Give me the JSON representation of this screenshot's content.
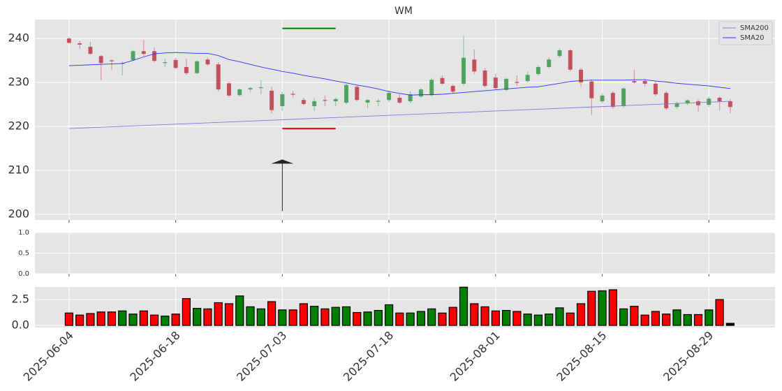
{
  "chart_data": [
    {
      "type": "candlestick",
      "title": "WM",
      "categories": [
        "2025-06-04",
        null,
        null,
        null,
        null,
        null,
        null,
        null,
        null,
        null,
        "2025-06-18",
        null,
        null,
        null,
        null,
        null,
        null,
        null,
        null,
        null,
        "2025-07-03",
        null,
        null,
        null,
        null,
        null,
        null,
        null,
        null,
        null,
        "2025-07-18",
        null,
        null,
        null,
        null,
        null,
        null,
        null,
        null,
        null,
        "2025-08-01",
        null,
        null,
        null,
        null,
        null,
        null,
        null,
        null,
        null,
        "2025-08-15",
        null,
        null,
        null,
        null,
        null,
        null,
        null,
        null,
        null,
        "2025-08-29",
        null,
        null
      ],
      "open": [
        240.0,
        238.9,
        238.1,
        236.0,
        235.0,
        234.2,
        235.1,
        237.1,
        237.1,
        234.4,
        235.1,
        233.5,
        232.1,
        235.2,
        234.1,
        229.8,
        227.1,
        228.4,
        228.7,
        228.1,
        224.6,
        227.4,
        226.0,
        224.6,
        226.0,
        225.7,
        225.4,
        229.0,
        225.4,
        225.6,
        226.0,
        226.5,
        225.7,
        226.8,
        227.1,
        231.0,
        229.2,
        229.7,
        235.2,
        232.7,
        231.1,
        228.3,
        230.1,
        230.3,
        231.9,
        233.5,
        236.0,
        237.3,
        232.9,
        230.2,
        225.7,
        227.6,
        224.6,
        230.3,
        230.3,
        229.7,
        227.6,
        224.4,
        225.2,
        225.7,
        224.9,
        226.5,
        225.7
      ],
      "high": [
        240.3,
        239.5,
        239.2,
        236.2,
        235.3,
        234.8,
        237.4,
        239.7,
        238.0,
        235.4,
        235.6,
        235.4,
        235.0,
        235.6,
        234.6,
        230.2,
        228.6,
        229.0,
        230.5,
        229.0,
        227.8,
        228.0,
        226.5,
        226.4,
        227.0,
        226.5,
        229.7,
        229.4,
        226.2,
        226.3,
        228.2,
        227.4,
        228.0,
        228.7,
        231.0,
        231.6,
        229.6,
        240.5,
        237.5,
        233.3,
        232.0,
        231.1,
        231.6,
        232.5,
        233.9,
        235.7,
        237.7,
        237.6,
        233.3,
        230.7,
        227.6,
        228.0,
        228.9,
        232.9,
        230.8,
        230.3,
        228.0,
        225.6,
        226.2,
        226.1,
        226.8,
        226.8,
        226.2
      ],
      "low": [
        238.8,
        237.6,
        236.3,
        230.5,
        232.9,
        231.6,
        234.9,
        236.0,
        234.6,
        233.5,
        233.0,
        231.7,
        231.9,
        233.8,
        228.0,
        226.6,
        226.8,
        227.8,
        227.3,
        222.9,
        223.5,
        226.6,
        224.8,
        223.5,
        224.6,
        224.6,
        225.0,
        225.7,
        224.1,
        224.5,
        225.5,
        225.1,
        225.3,
        226.5,
        226.8,
        229.4,
        227.4,
        229.3,
        231.9,
        228.8,
        228.3,
        228.0,
        229.2,
        230.0,
        231.5,
        233.2,
        235.6,
        232.5,
        228.9,
        222.6,
        225.2,
        224.0,
        224.2,
        229.7,
        229.0,
        226.9,
        223.7,
        224.0,
        224.8,
        223.4,
        224.4,
        223.6,
        223.0
      ],
      "close": [
        239.0,
        238.6,
        236.5,
        234.4,
        234.8,
        234.4,
        237.1,
        236.5,
        234.9,
        234.6,
        233.3,
        232.1,
        234.8,
        234.1,
        228.4,
        227.0,
        228.4,
        228.7,
        228.9,
        223.7,
        227.3,
        227.2,
        225.1,
        225.7,
        225.8,
        226.2,
        229.4,
        226.0,
        226.0,
        225.8,
        227.6,
        225.4,
        227.3,
        228.4,
        230.6,
        229.7,
        227.9,
        235.6,
        232.5,
        229.2,
        228.7,
        230.8,
        229.9,
        231.7,
        233.5,
        235.2,
        237.3,
        232.9,
        230.0,
        226.4,
        227.0,
        224.4,
        228.6,
        230.0,
        229.7,
        227.3,
        224.1,
        225.2,
        225.9,
        224.8,
        226.3,
        225.7,
        224.4
      ],
      "up_color": "#3a9a4f",
      "down_color": "#c0394a",
      "series": [
        {
          "name": "SMA200",
          "color": "#7a7ae0",
          "values": [
            219.5,
            219.6,
            219.7,
            219.8,
            219.9,
            220.0,
            220.1,
            220.2,
            220.3,
            220.4,
            220.5,
            220.6,
            220.7,
            220.8,
            220.9,
            221.0,
            221.1,
            221.2,
            221.3,
            221.4,
            221.5,
            221.6,
            221.7,
            221.8,
            221.9,
            222.0,
            222.1,
            222.2,
            222.3,
            222.4,
            222.5,
            222.6,
            222.7,
            222.8,
            222.9,
            223.0,
            223.1,
            223.2,
            223.3,
            223.4,
            223.5,
            223.6,
            223.7,
            223.8,
            223.9,
            224.0,
            224.1,
            224.2,
            224.3,
            224.4,
            224.5,
            224.6,
            224.7,
            224.8,
            224.9,
            225.0,
            225.1,
            225.2,
            225.3,
            225.4,
            225.5,
            225.6,
            225.7
          ]
        },
        {
          "name": "SMA20",
          "color": "#3030ff",
          "values": [
            233.8,
            233.9,
            234.0,
            234.1,
            234.2,
            234.3,
            235.0,
            235.8,
            236.5,
            236.7,
            236.8,
            236.7,
            236.6,
            236.6,
            236.1,
            235.2,
            234.7,
            234.1,
            233.5,
            233.0,
            232.5,
            232.1,
            231.6,
            231.2,
            230.8,
            230.3,
            229.9,
            229.4,
            229.0,
            228.5,
            227.9,
            227.5,
            227.1,
            227.2,
            227.2,
            227.3,
            227.5,
            227.7,
            227.9,
            228.1,
            228.3,
            228.5,
            228.7,
            228.9,
            229.0,
            229.4,
            229.8,
            230.2,
            230.4,
            230.5,
            230.5,
            230.5,
            230.5,
            230.6,
            230.6,
            230.3,
            230.1,
            229.8,
            229.6,
            229.4,
            229.2,
            228.9,
            228.6
          ]
        }
      ],
      "hlines": [
        {
          "y": 242.3,
          "x": [
            20,
            25
          ],
          "color": "#008000"
        },
        {
          "y": 219.5,
          "x": [
            20,
            25
          ],
          "color": "#e00000"
        }
      ],
      "arrow": {
        "x": 20,
        "y": [
          200.7,
          212.3
        ],
        "color": "#222222"
      },
      "xlim": [
        -3.2,
        66.2
      ],
      "ylim": [
        198.7,
        244.3
      ],
      "yticks": [
        200,
        210,
        220,
        230,
        240
      ],
      "grid": true,
      "legend": "upper right"
    },
    {
      "type": "line",
      "ylim": [
        0,
        1
      ],
      "yticks": [
        {
          "value": 0,
          "label": "0.0"
        },
        {
          "value": 0.5,
          "label": "0.5"
        },
        {
          "value": 1,
          "label": "1.0"
        }
      ],
      "grid": true
    },
    {
      "type": "bar",
      "values": [
        1.2,
        1.0,
        1.15,
        1.3,
        1.3,
        1.4,
        1.1,
        1.4,
        1.0,
        0.9,
        1.1,
        2.6,
        1.65,
        1.6,
        2.2,
        2.1,
        2.85,
        1.8,
        1.6,
        2.3,
        1.5,
        1.5,
        2.1,
        1.85,
        1.6,
        1.75,
        1.8,
        1.25,
        1.3,
        1.45,
        2.0,
        1.2,
        1.2,
        1.35,
        1.6,
        1.2,
        1.75,
        3.7,
        2.1,
        1.8,
        1.4,
        1.45,
        1.35,
        1.1,
        1.0,
        1.1,
        1.7,
        1.2,
        2.1,
        3.3,
        3.35,
        3.45,
        1.6,
        1.85,
        1.0,
        1.35,
        1.1,
        1.5,
        1.05,
        1.05,
        1.5,
        2.5,
        0.2
      ],
      "colors": [
        "red",
        "red",
        "red",
        "red",
        "red",
        "green",
        "green",
        "red",
        "red",
        "green",
        "red",
        "red",
        "green",
        "red",
        "red",
        "red",
        "green",
        "green",
        "green",
        "red",
        "green",
        "red",
        "red",
        "green",
        "red",
        "green",
        "green",
        "red",
        "green",
        "green",
        "green",
        "red",
        "green",
        "green",
        "green",
        "red",
        "red",
        "green",
        "red",
        "red",
        "red",
        "green",
        "red",
        "green",
        "green",
        "green",
        "green",
        "red",
        "red",
        "red",
        "green",
        "red",
        "green",
        "red",
        "red",
        "red",
        "red",
        "green",
        "green",
        "red",
        "green",
        "red",
        "black"
      ],
      "ylim": [
        -0.2,
        3.72
      ],
      "yticks": [
        {
          "value": 0,
          "label": "0.0"
        },
        2.5
      ],
      "grid": true
    }
  ]
}
